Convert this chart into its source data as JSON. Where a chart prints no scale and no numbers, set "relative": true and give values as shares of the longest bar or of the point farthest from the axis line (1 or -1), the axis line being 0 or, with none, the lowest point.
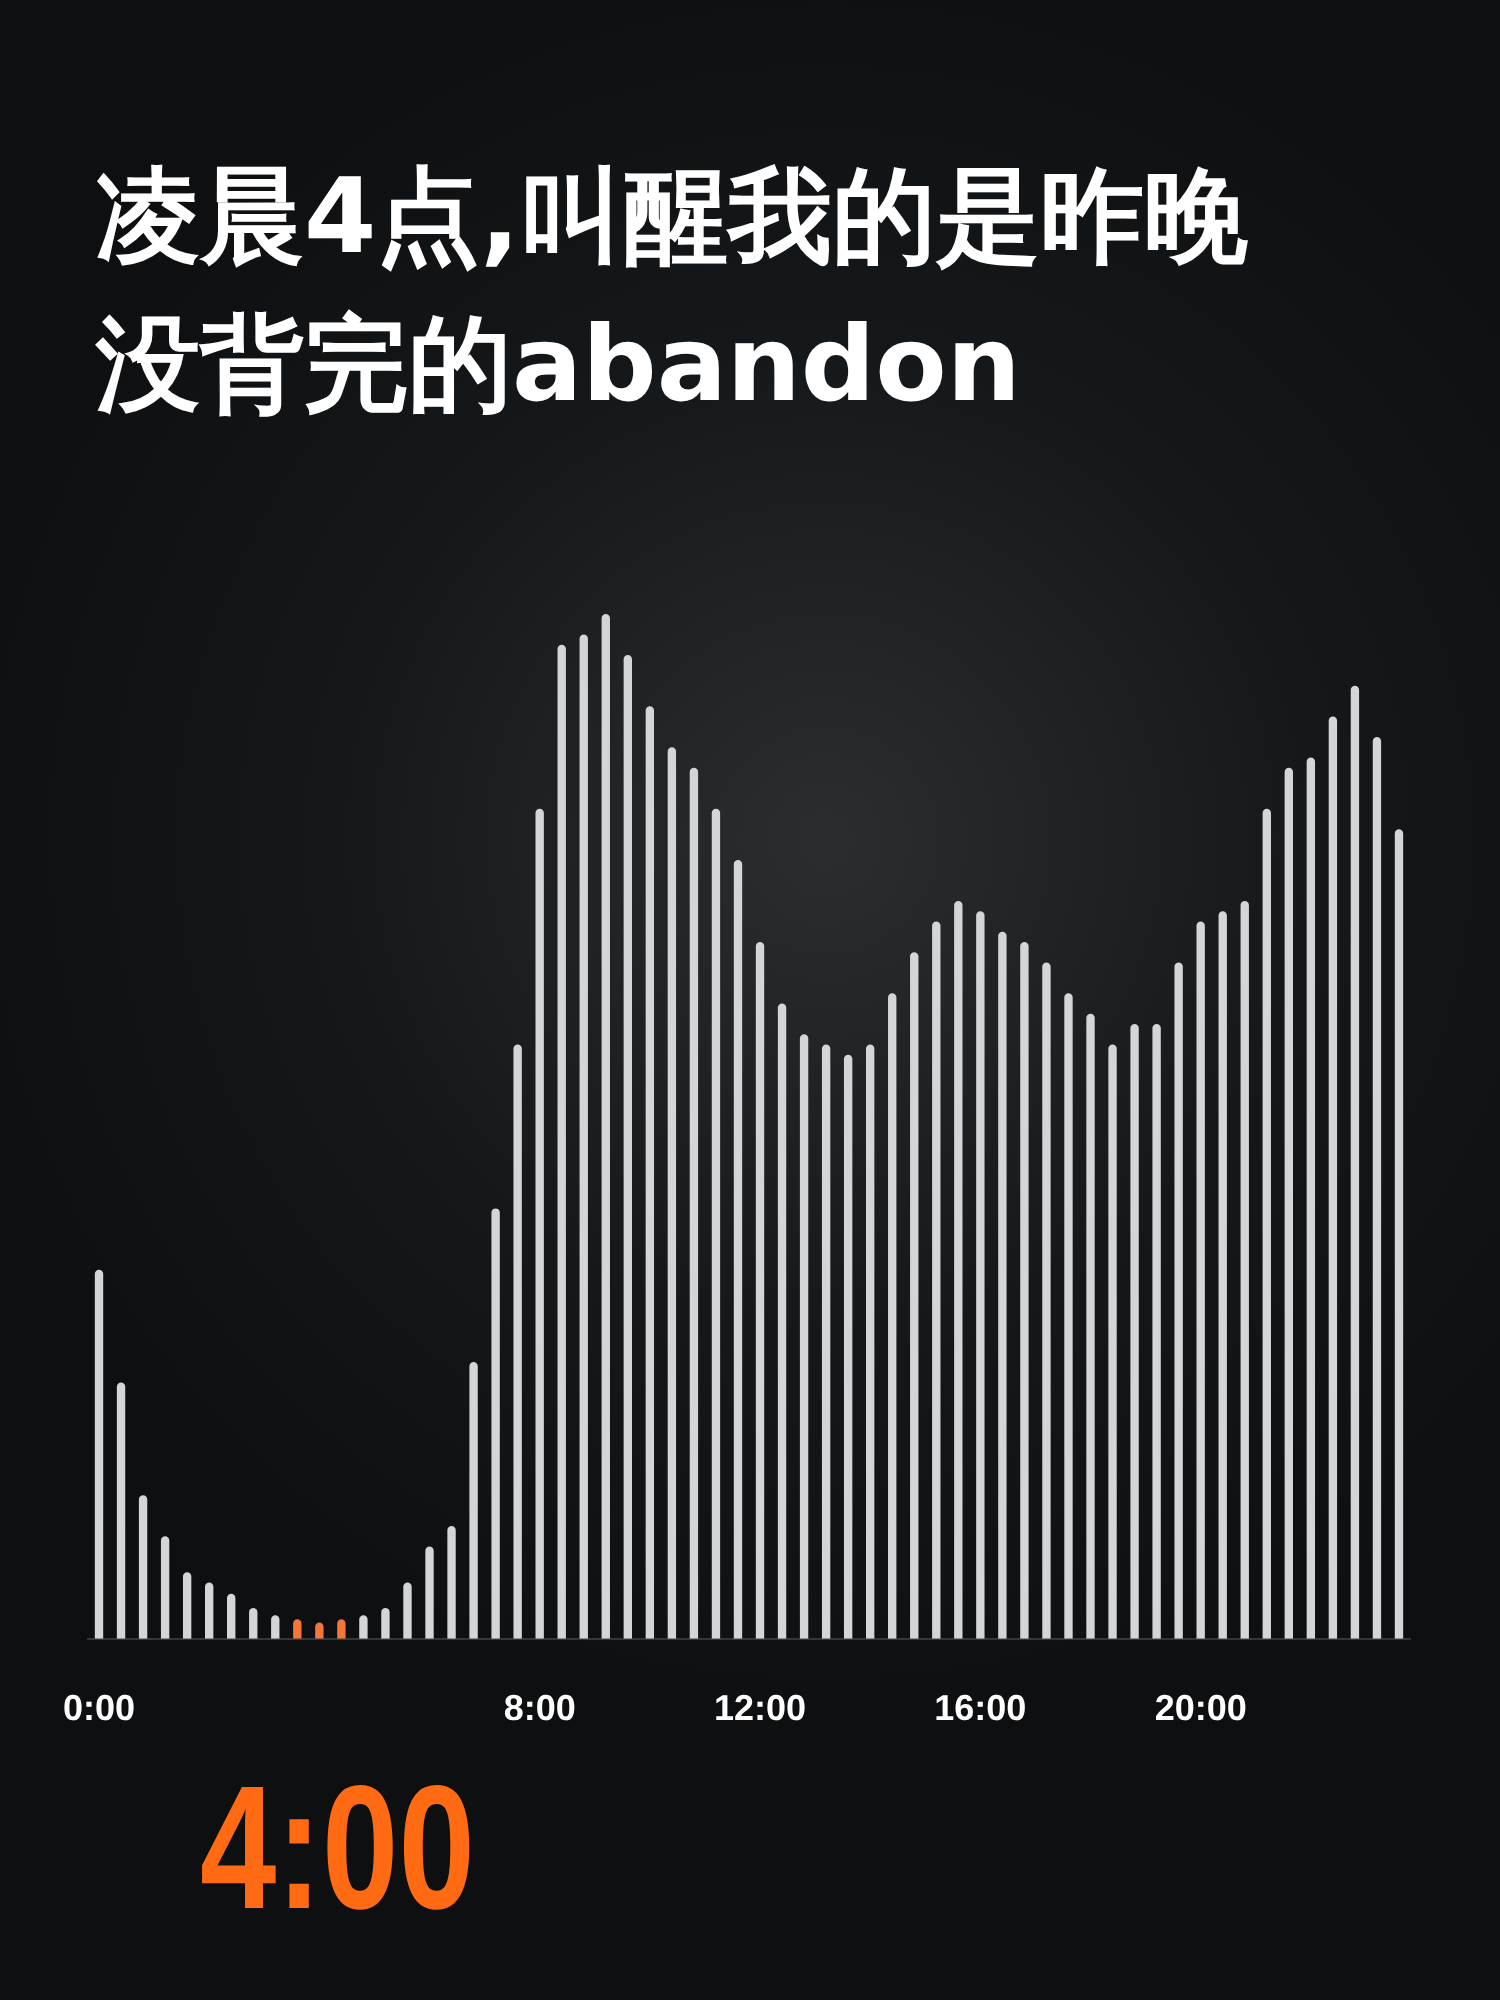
{
  "chart_data": {
    "type": "bar",
    "title": "凌晨4点,叫醒我的是昨晚没背完的abandon",
    "categories": [
      "0:00",
      null,
      null,
      null,
      null,
      null,
      null,
      null,
      null,
      null,
      null,
      null,
      null,
      null,
      null,
      null,
      null,
      null,
      null,
      null,
      "8:00",
      null,
      null,
      null,
      null,
      null,
      null,
      null,
      null,
      null,
      "12:00",
      null,
      null,
      null,
      null,
      null,
      null,
      null,
      null,
      null,
      "16:00",
      null,
      null,
      null,
      null,
      null,
      null,
      null,
      null,
      null,
      "20:00",
      null,
      null,
      null,
      null,
      null,
      null,
      null,
      null,
      null
    ],
    "values": [
      0.36,
      0.25,
      0.14,
      0.1,
      0.065,
      0.055,
      0.044,
      0.03,
      0.023,
      0.019,
      0.016,
      0.019,
      0.023,
      0.03,
      0.055,
      0.09,
      0.11,
      0.27,
      0.42,
      0.58,
      0.81,
      0.97,
      0.98,
      1,
      0.96,
      0.91,
      0.87,
      0.85,
      0.81,
      0.76,
      0.68,
      0.62,
      0.59,
      0.58,
      0.57,
      0.58,
      0.63,
      0.67,
      0.7,
      0.72,
      0.71,
      0.69,
      0.68,
      0.66,
      0.63,
      0.61,
      0.58,
      0.6,
      0.6,
      0.66,
      0.7,
      0.71,
      0.72,
      0.81,
      0.85,
      0.86,
      0.9,
      0.93,
      0.88,
      0.79
    ],
    "colors": [
      "#d4d5d6",
      "#d4d5d6",
      "#d4d5d6",
      "#d4d5d6",
      "#d4d5d6",
      "#d4d5d6",
      "#d4d5d6",
      "#d4d5d6",
      "#d4d5d6",
      "#f2763a",
      "#f2763a",
      "#f2763a",
      "#d4d5d6",
      "#d4d5d6",
      "#d4d5d6",
      "#d4d5d6",
      "#d4d5d6",
      "#d4d5d6",
      "#d4d5d6",
      "#d4d5d6",
      "#d4d5d6",
      "#d4d5d6",
      "#d4d5d6",
      "#d4d5d6",
      "#d4d5d6",
      "#d4d5d6",
      "#d4d5d6",
      "#d4d5d6",
      "#d4d5d6",
      "#d4d5d6",
      "#d4d5d6",
      "#d4d5d6",
      "#d4d5d6",
      "#d4d5d6",
      "#d4d5d6",
      "#d4d5d6",
      "#d4d5d6",
      "#d4d5d6",
      "#d4d5d6",
      "#d4d5d6",
      "#d4d5d6",
      "#d4d5d6",
      "#d4d5d6",
      "#d4d5d6",
      "#d4d5d6",
      "#d4d5d6",
      "#d4d5d6",
      "#d4d5d6",
      "#d4d5d6",
      "#d4d5d6",
      "#d4d5d6",
      "#d4d5d6",
      "#d4d5d6",
      "#d4d5d6",
      "#d4d5d6",
      "#d4d5d6",
      "#d4d5d6",
      "#d4d5d6",
      "#d4d5d6",
      "#d4d5d6"
    ],
    "relative": true,
    "annotations": [
      "4:00"
    ]
  }
}
